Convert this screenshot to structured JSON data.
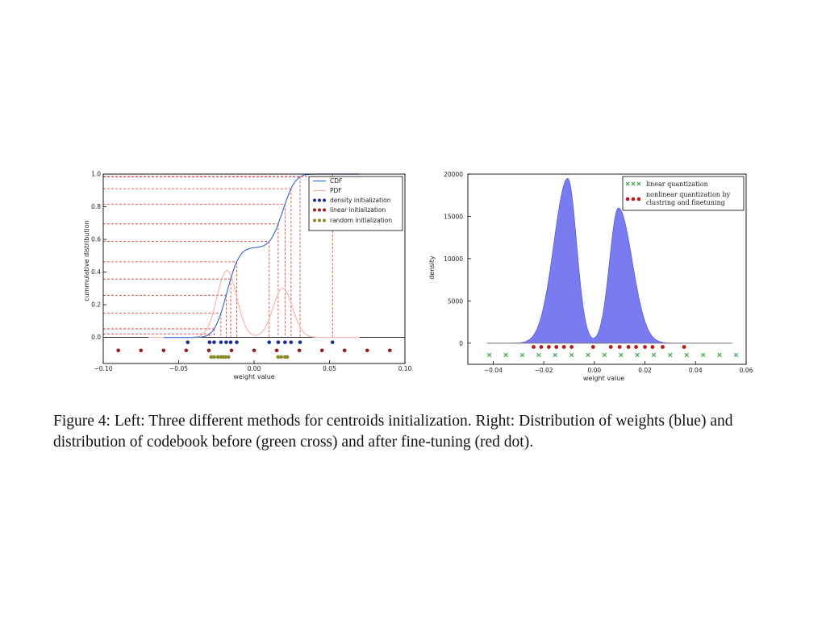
{
  "caption": "Figure 4: Left: Three different methods for centroids initialization. Right: Distribution of weights (blue) and distribution of codebook before (green cross) and after fine-tuning (red dot).",
  "colors": {
    "cdf": "#3f6fd0",
    "pdf": "#f4b2a8",
    "guide": "#e0302a",
    "density_dot": "#1a2a9a",
    "linear_dot": "#9a1d1d",
    "random_dot": "#8a8a2a",
    "weights_fill": "#7b7bf0",
    "green_cross": "#2a9a3a",
    "red_dot": "#b81a1a"
  },
  "chart_data": [
    {
      "type": "line",
      "name": "left",
      "xlabel": "weight value",
      "ylabel": "cummulative distribution",
      "xlim": [
        -0.1,
        0.1
      ],
      "ylim": [
        -0.16,
        1.0
      ],
      "xticks": [
        -0.1,
        -0.05,
        0.0,
        0.05,
        0.1
      ],
      "xtick_labels": [
        "−0.10",
        "−0.05",
        "0.00",
        "0.05",
        "0.10"
      ],
      "yticks": [
        0.0,
        0.2,
        0.4,
        0.6,
        0.8,
        1.0
      ],
      "ytick_labels": [
        "0.0",
        "0.2",
        "0.4",
        "0.6",
        "0.8",
        "1.0"
      ],
      "legend": [
        "CDF",
        "PDF",
        "density initialization",
        "linear initialization",
        "random initialization"
      ],
      "legend_position": "top-right",
      "cdf_components": [
        {
          "mu": -0.018,
          "sigma": 0.0065,
          "weight": 0.55
        },
        {
          "mu": 0.019,
          "sigma": 0.0065,
          "weight": 0.45
        }
      ],
      "pdf_peak_scaled": [
        0.41,
        0.3
      ],
      "guide_x": [
        -0.0295,
        -0.0265,
        -0.022,
        -0.0185,
        -0.0155,
        -0.0115,
        0.01,
        0.016,
        0.0205,
        0.0245,
        0.0305,
        0.052
      ],
      "density_init": [
        -0.044,
        -0.0295,
        -0.0265,
        -0.022,
        -0.0185,
        -0.0155,
        -0.0115,
        0.01,
        0.016,
        0.0205,
        0.0245,
        0.0305,
        0.052
      ],
      "linear_init": [
        -0.09,
        -0.075,
        -0.06,
        -0.045,
        -0.03,
        -0.015,
        0.0,
        0.015,
        0.03,
        0.045,
        0.06,
        0.075,
        0.09
      ],
      "random_init": [
        -0.0285,
        -0.0265,
        -0.024,
        -0.022,
        -0.0205,
        -0.019,
        -0.017,
        0.016,
        0.018,
        0.0205,
        0.022
      ],
      "marker_y": {
        "density": -0.03,
        "linear": -0.08,
        "random": -0.12
      }
    },
    {
      "type": "area",
      "name": "right",
      "xlabel": "weight value",
      "ylabel": "density",
      "xlim": [
        -0.05,
        0.06
      ],
      "ylim": [
        -2500,
        20000
      ],
      "xticks": [
        -0.04,
        -0.02,
        0.0,
        0.02,
        0.04,
        0.06
      ],
      "xtick_labels": [
        "−0.04",
        "−0.02",
        "0.00",
        "0.02",
        "0.04",
        "0.06"
      ],
      "yticks": [
        0,
        5000,
        10000,
        15000,
        20000
      ],
      "ytick_labels": [
        "0",
        "5000",
        "10000",
        "15000",
        "20000"
      ],
      "legend": [
        "linear quantization",
        "nonlinear quantization by clustring and finetuning"
      ],
      "legend_position": "top-right",
      "weight_peaks": [
        {
          "mu": -0.0105,
          "sigma_left": 0.0055,
          "sigma_right": 0.0035,
          "height": 19500
        },
        {
          "mu": 0.0095,
          "sigma_left": 0.0035,
          "sigma_right": 0.0055,
          "height": 16000
        }
      ],
      "baseline_range": [
        -0.0425,
        0.0545
      ],
      "linear_quantization": [
        -0.0415,
        -0.035,
        -0.0285,
        -0.022,
        -0.0155,
        -0.009,
        -0.0025,
        0.004,
        0.0105,
        0.017,
        0.0235,
        0.03,
        0.0365,
        0.043,
        0.0495,
        0.056
      ],
      "nonlinear_quantization": [
        -0.024,
        -0.021,
        -0.018,
        -0.015,
        -0.012,
        -0.009,
        -0.0005,
        0.0065,
        0.01,
        0.0135,
        0.0165,
        0.02,
        0.023,
        0.027,
        0.0355
      ],
      "marker_y": {
        "red": -450,
        "green": -1400
      }
    }
  ]
}
